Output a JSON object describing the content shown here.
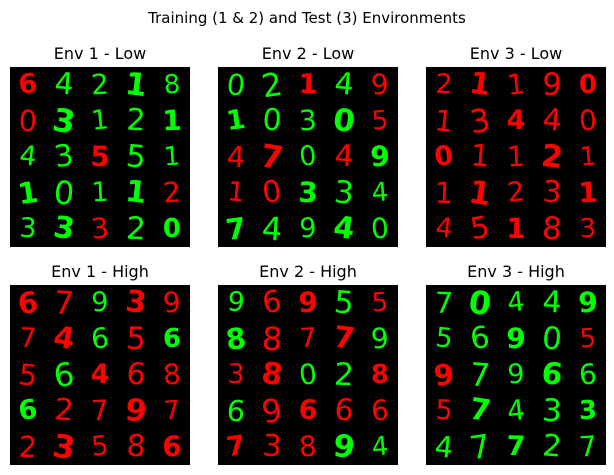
{
  "figure": {
    "title": "Training (1 & 2) and Test (3) Environments",
    "colors": {
      "red": "#ff0000",
      "green": "#00ff00",
      "background": "#000000"
    }
  },
  "panels": [
    {
      "title": "Env 1 - Low",
      "digits": [
        [
          [
            "6",
            "r"
          ],
          [
            "4",
            "g"
          ],
          [
            "2",
            "g"
          ],
          [
            "1",
            "g"
          ],
          [
            "8",
            "g"
          ]
        ],
        [
          [
            "0",
            "r"
          ],
          [
            "3",
            "g"
          ],
          [
            "1",
            "g"
          ],
          [
            "2",
            "g"
          ],
          [
            "1",
            "g"
          ]
        ],
        [
          [
            "4",
            "g"
          ],
          [
            "3",
            "g"
          ],
          [
            "5",
            "r"
          ],
          [
            "5",
            "g"
          ],
          [
            "1",
            "g"
          ]
        ],
        [
          [
            "1",
            "g"
          ],
          [
            "0",
            "g"
          ],
          [
            "1",
            "g"
          ],
          [
            "1",
            "g"
          ],
          [
            "2",
            "r"
          ]
        ],
        [
          [
            "3",
            "g"
          ],
          [
            "3",
            "g"
          ],
          [
            "3",
            "r"
          ],
          [
            "2",
            "g"
          ],
          [
            "0",
            "g"
          ]
        ]
      ]
    },
    {
      "title": "Env 2 - Low",
      "digits": [
        [
          [
            "0",
            "g"
          ],
          [
            "2",
            "g"
          ],
          [
            "1",
            "r"
          ],
          [
            "4",
            "g"
          ],
          [
            "9",
            "r"
          ]
        ],
        [
          [
            "1",
            "g"
          ],
          [
            "0",
            "g"
          ],
          [
            "3",
            "g"
          ],
          [
            "0",
            "g"
          ],
          [
            "5",
            "r"
          ]
        ],
        [
          [
            "4",
            "r"
          ],
          [
            "7",
            "r"
          ],
          [
            "0",
            "g"
          ],
          [
            "4",
            "r"
          ],
          [
            "9",
            "g"
          ]
        ],
        [
          [
            "1",
            "r"
          ],
          [
            "0",
            "r"
          ],
          [
            "3",
            "g"
          ],
          [
            "3",
            "g"
          ],
          [
            "4",
            "g"
          ]
        ],
        [
          [
            "7",
            "g"
          ],
          [
            "4",
            "g"
          ],
          [
            "9",
            "g"
          ],
          [
            "4",
            "g"
          ],
          [
            "0",
            "g"
          ]
        ]
      ]
    },
    {
      "title": "Env 3 - Low",
      "digits": [
        [
          [
            "2",
            "r"
          ],
          [
            "1",
            "r"
          ],
          [
            "1",
            "r"
          ],
          [
            "9",
            "r"
          ],
          [
            "0",
            "r"
          ]
        ],
        [
          [
            "1",
            "r"
          ],
          [
            "3",
            "r"
          ],
          [
            "4",
            "r"
          ],
          [
            "4",
            "r"
          ],
          [
            "0",
            "r"
          ]
        ],
        [
          [
            "0",
            "r"
          ],
          [
            "1",
            "r"
          ],
          [
            "1",
            "r"
          ],
          [
            "2",
            "r"
          ],
          [
            "1",
            "r"
          ]
        ],
        [
          [
            "1",
            "r"
          ],
          [
            "1",
            "r"
          ],
          [
            "2",
            "r"
          ],
          [
            "3",
            "r"
          ],
          [
            "1",
            "r"
          ]
        ],
        [
          [
            "4",
            "r"
          ],
          [
            "5",
            "r"
          ],
          [
            "1",
            "r"
          ],
          [
            "8",
            "r"
          ],
          [
            "3",
            "r"
          ]
        ]
      ]
    },
    {
      "title": "Env 1 - High",
      "digits": [
        [
          [
            "6",
            "r"
          ],
          [
            "7",
            "r"
          ],
          [
            "9",
            "g"
          ],
          [
            "3",
            "r"
          ],
          [
            "9",
            "r"
          ]
        ],
        [
          [
            "7",
            "r"
          ],
          [
            "4",
            "r"
          ],
          [
            "6",
            "g"
          ],
          [
            "5",
            "r"
          ],
          [
            "6",
            "g"
          ]
        ],
        [
          [
            "5",
            "r"
          ],
          [
            "6",
            "g"
          ],
          [
            "4",
            "r"
          ],
          [
            "6",
            "r"
          ],
          [
            "8",
            "r"
          ]
        ],
        [
          [
            "6",
            "g"
          ],
          [
            "2",
            "r"
          ],
          [
            "7",
            "r"
          ],
          [
            "9",
            "r"
          ],
          [
            "7",
            "r"
          ]
        ],
        [
          [
            "2",
            "r"
          ],
          [
            "3",
            "r"
          ],
          [
            "5",
            "r"
          ],
          [
            "8",
            "r"
          ],
          [
            "6",
            "r"
          ]
        ]
      ]
    },
    {
      "title": "Env 2 - High",
      "digits": [
        [
          [
            "9",
            "g"
          ],
          [
            "6",
            "r"
          ],
          [
            "9",
            "r"
          ],
          [
            "5",
            "g"
          ],
          [
            "5",
            "r"
          ]
        ],
        [
          [
            "8",
            "g"
          ],
          [
            "8",
            "r"
          ],
          [
            "7",
            "r"
          ],
          [
            "7",
            "r"
          ],
          [
            "9",
            "g"
          ]
        ],
        [
          [
            "3",
            "r"
          ],
          [
            "8",
            "r"
          ],
          [
            "0",
            "g"
          ],
          [
            "2",
            "g"
          ],
          [
            "8",
            "r"
          ]
        ],
        [
          [
            "6",
            "g"
          ],
          [
            "9",
            "r"
          ],
          [
            "6",
            "r"
          ],
          [
            "6",
            "r"
          ],
          [
            "6",
            "r"
          ]
        ],
        [
          [
            "7",
            "r"
          ],
          [
            "3",
            "r"
          ],
          [
            "8",
            "r"
          ],
          [
            "9",
            "g"
          ],
          [
            "4",
            "g"
          ]
        ]
      ]
    },
    {
      "title": "Env 3 - High",
      "digits": [
        [
          [
            "7",
            "g"
          ],
          [
            "0",
            "g"
          ],
          [
            "4",
            "g"
          ],
          [
            "4",
            "g"
          ],
          [
            "9",
            "g"
          ]
        ],
        [
          [
            "5",
            "g"
          ],
          [
            "6",
            "g"
          ],
          [
            "9",
            "g"
          ],
          [
            "0",
            "g"
          ],
          [
            "5",
            "r"
          ]
        ],
        [
          [
            "9",
            "r"
          ],
          [
            "7",
            "g"
          ],
          [
            "9",
            "g"
          ],
          [
            "6",
            "g"
          ],
          [
            "6",
            "g"
          ]
        ],
        [
          [
            "5",
            "r"
          ],
          [
            "7",
            "g"
          ],
          [
            "4",
            "g"
          ],
          [
            "3",
            "g"
          ],
          [
            "3",
            "g"
          ]
        ],
        [
          [
            "4",
            "g"
          ],
          [
            "7",
            "g"
          ],
          [
            "7",
            "g"
          ],
          [
            "2",
            "g"
          ],
          [
            "7",
            "g"
          ]
        ]
      ]
    }
  ]
}
